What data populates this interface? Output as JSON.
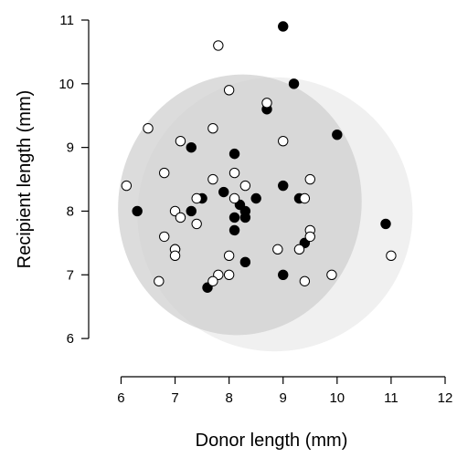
{
  "chart_data": {
    "type": "scatter",
    "xlabel": "Donor length (mm)",
    "ylabel": "Recipient length (mm)",
    "xlim": [
      5.4,
      12
    ],
    "ylim": [
      5.4,
      11
    ],
    "xticks": [
      6,
      7,
      8,
      9,
      10,
      11,
      12
    ],
    "yticks": [
      6,
      7,
      8,
      9,
      10,
      11
    ],
    "grid": false,
    "legend": "none",
    "ellipses": [
      {
        "cx": 8.85,
        "cy": 7.95,
        "rx": 2.55,
        "ry": 2.15,
        "angle_deg": 28,
        "color": "#f0f0f0"
      },
      {
        "cx": 8.2,
        "cy": 8.1,
        "rx": 2.25,
        "ry": 2.05,
        "angle_deg": -10,
        "color": "#cfcfcf",
        "opacity": 0.72
      }
    ],
    "series": [
      {
        "fill": "#000000",
        "points": [
          [
            9.0,
            10.9
          ],
          [
            9.2,
            10.0
          ],
          [
            8.7,
            9.6
          ],
          [
            10.0,
            9.2
          ],
          [
            7.3,
            9.0
          ],
          [
            8.1,
            8.9
          ],
          [
            9.0,
            8.4
          ],
          [
            7.9,
            8.3
          ],
          [
            8.5,
            8.2
          ],
          [
            9.3,
            8.2
          ],
          [
            7.5,
            8.2
          ],
          [
            8.2,
            8.1
          ],
          [
            6.3,
            8.0
          ],
          [
            7.3,
            8.0
          ],
          [
            8.3,
            8.0
          ],
          [
            8.1,
            7.9
          ],
          [
            8.3,
            7.9
          ],
          [
            10.9,
            7.8
          ],
          [
            8.1,
            7.7
          ],
          [
            9.4,
            7.5
          ],
          [
            7.0,
            7.4
          ],
          [
            8.3,
            7.2
          ],
          [
            9.0,
            7.0
          ],
          [
            7.6,
            6.8
          ]
        ]
      },
      {
        "fill": "#ffffff",
        "points": [
          [
            7.8,
            10.6
          ],
          [
            8.0,
            9.9
          ],
          [
            8.7,
            9.7
          ],
          [
            6.5,
            9.3
          ],
          [
            7.7,
            9.3
          ],
          [
            7.1,
            9.1
          ],
          [
            9.0,
            9.1
          ],
          [
            6.8,
            8.6
          ],
          [
            8.1,
            8.6
          ],
          [
            7.7,
            8.5
          ],
          [
            9.5,
            8.5
          ],
          [
            6.1,
            8.4
          ],
          [
            8.3,
            8.4
          ],
          [
            7.4,
            8.2
          ],
          [
            8.1,
            8.2
          ],
          [
            9.4,
            8.2
          ],
          [
            7.0,
            8.0
          ],
          [
            7.1,
            7.9
          ],
          [
            7.4,
            7.8
          ],
          [
            9.5,
            7.7
          ],
          [
            6.8,
            7.6
          ],
          [
            9.5,
            7.6
          ],
          [
            7.0,
            7.4
          ],
          [
            8.9,
            7.4
          ],
          [
            9.3,
            7.4
          ],
          [
            7.0,
            7.3
          ],
          [
            8.0,
            7.3
          ],
          [
            11.0,
            7.3
          ],
          [
            7.8,
            7.0
          ],
          [
            8.0,
            7.0
          ],
          [
            9.9,
            7.0
          ],
          [
            6.7,
            6.9
          ],
          [
            7.7,
            6.9
          ],
          [
            9.4,
            6.9
          ]
        ]
      }
    ]
  }
}
